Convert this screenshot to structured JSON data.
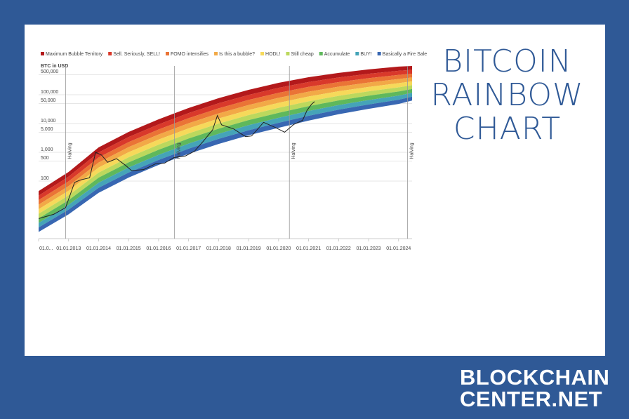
{
  "page": {
    "title": "BITCOIN RAINBOW CHART",
    "brand": [
      "BLOCKCHAIN",
      "CENTER.NET"
    ]
  },
  "chart_data": {
    "type": "rainbow",
    "y_label": "BTC in USD",
    "log_y": true,
    "grid": true,
    "ylim": [
      1,
      1000000
    ],
    "yticks": [
      {
        "value": 500000,
        "label": "500,000"
      },
      {
        "value": 100000,
        "label": "100,000"
      },
      {
        "value": 50000,
        "label": "50,000"
      },
      {
        "value": 10000,
        "label": "10,000"
      },
      {
        "value": 5000,
        "label": "5,000"
      },
      {
        "value": 1000,
        "label": "1,000"
      },
      500,
      100
    ],
    "xlim": [
      2012,
      2024.45
    ],
    "xticks": [
      {
        "value": 2012,
        "label": "01.0..."
      },
      {
        "value": 2013,
        "label": "01.01.2013"
      },
      {
        "value": 2014,
        "label": "01.01.2014"
      },
      {
        "value": 2015,
        "label": "01.01.2015"
      },
      {
        "value": 2016,
        "label": "01.01.2016"
      },
      {
        "value": 2017,
        "label": "01.01.2017"
      },
      {
        "value": 2018,
        "label": "01.01.2018"
      },
      {
        "value": 2019,
        "label": "01.01.2019"
      },
      {
        "value": 2020,
        "label": "01.01.2020"
      },
      {
        "value": 2021,
        "label": "01.01.2021"
      },
      {
        "value": 2022,
        "label": "01.01.2022"
      },
      {
        "value": 2023,
        "label": "01.01.2023"
      },
      {
        "value": 2024,
        "label": "01.01.2024"
      }
    ],
    "bands": [
      {
        "name": "Maximum Bubble Territory",
        "color": "#b3191b"
      },
      {
        "name": "Sell. Seriously, SELL!",
        "color": "#d9392b"
      },
      {
        "name": "FOMO intensifies",
        "color": "#ea7436"
      },
      {
        "name": "Is this a bubble?",
        "color": "#f2a947"
      },
      {
        "name": "HODL!",
        "color": "#f6d95a"
      },
      {
        "name": "Still cheap",
        "color": "#bcd85d"
      },
      {
        "name": "Accumulate",
        "color": "#5fb85c"
      },
      {
        "name": "BUY!",
        "color": "#45a4b8"
      },
      {
        "name": "Basically a Fire Sale",
        "color": "#3867b2"
      }
    ],
    "band_x": [
      2012,
      2013,
      2014,
      2015,
      2016,
      2017,
      2018,
      2019,
      2020,
      2021,
      2022,
      2023,
      2024,
      2024.45
    ],
    "band_upper": [
      45,
      208,
      1480,
      5100,
      14000,
      34600,
      76000,
      148000,
      260000,
      407000,
      575000,
      760000,
      950000,
      1000000
    ],
    "band_lower": [
      1.7,
      7,
      39,
      132,
      363,
      890,
      1950,
      3900,
      7100,
      12600,
      21000,
      32400,
      48000,
      63000
    ],
    "price": {
      "color": "#222222",
      "x": [
        2012.0,
        2012.5,
        2012.9,
        2013.2,
        2013.4,
        2013.7,
        2013.9,
        2014.1,
        2014.3,
        2014.6,
        2014.9,
        2015.1,
        2015.5,
        2015.9,
        2016.2,
        2016.5,
        2016.9,
        2017.2,
        2017.5,
        2017.8,
        2017.96,
        2018.1,
        2018.5,
        2018.9,
        2019.1,
        2019.5,
        2019.9,
        2020.2,
        2020.5,
        2020.8,
        2020.95,
        2021.1,
        2021.2
      ],
      "values": [
        5,
        7,
        12,
        90,
        110,
        130,
        1000,
        800,
        450,
        600,
        350,
        230,
        250,
        400,
        420,
        650,
        750,
        1100,
        2500,
        6000,
        19000,
        9000,
        6500,
        3500,
        3700,
        11000,
        7200,
        5000,
        9200,
        13000,
        29000,
        47000,
        58000
      ]
    },
    "annotations": [
      {
        "x": 2012.9,
        "label": "Halving"
      },
      {
        "x": 2016.53,
        "label": "Halving"
      },
      {
        "x": 2020.36,
        "label": "Halving"
      },
      {
        "x": 2024.3,
        "label": "Halving"
      }
    ]
  }
}
